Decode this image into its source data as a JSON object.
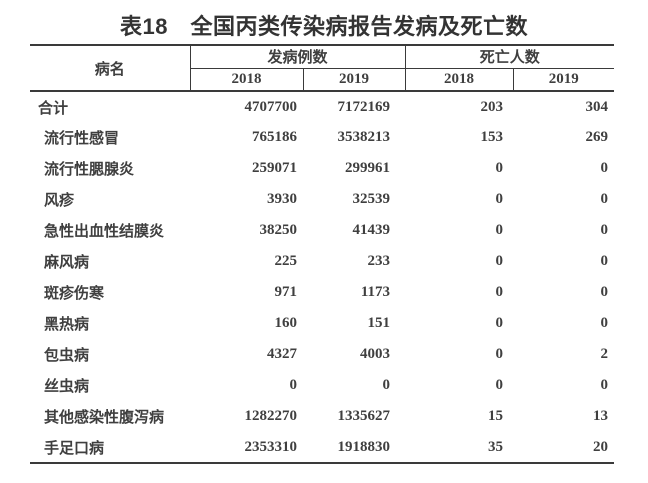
{
  "title": "表18　全国丙类传染病报告发病及死亡数",
  "table": {
    "header": {
      "disease": "病名",
      "cases_group": "发病例数",
      "deaths_group": "死亡人数",
      "cases_2018": "2018",
      "cases_2019": "2019",
      "deaths_2018": "2018",
      "deaths_2019": "2019"
    },
    "rows": [
      {
        "name": "合计",
        "is_total": true,
        "cases_2018": "4707700",
        "cases_2019": "7172169",
        "deaths_2018": "203",
        "deaths_2019": "304"
      },
      {
        "name": "流行性感冒",
        "is_total": false,
        "cases_2018": "765186",
        "cases_2019": "3538213",
        "deaths_2018": "153",
        "deaths_2019": "269"
      },
      {
        "name": "流行性腮腺炎",
        "is_total": false,
        "cases_2018": "259071",
        "cases_2019": "299961",
        "deaths_2018": "0",
        "deaths_2019": "0"
      },
      {
        "name": "风疹",
        "is_total": false,
        "cases_2018": "3930",
        "cases_2019": "32539",
        "deaths_2018": "0",
        "deaths_2019": "0"
      },
      {
        "name": "急性出血性结膜炎",
        "is_total": false,
        "cases_2018": "38250",
        "cases_2019": "41439",
        "deaths_2018": "0",
        "deaths_2019": "0"
      },
      {
        "name": "麻风病",
        "is_total": false,
        "cases_2018": "225",
        "cases_2019": "233",
        "deaths_2018": "0",
        "deaths_2019": "0"
      },
      {
        "name": "斑疹伤寒",
        "is_total": false,
        "cases_2018": "971",
        "cases_2019": "1173",
        "deaths_2018": "0",
        "deaths_2019": "0"
      },
      {
        "name": "黑热病",
        "is_total": false,
        "cases_2018": "160",
        "cases_2019": "151",
        "deaths_2018": "0",
        "deaths_2019": "0"
      },
      {
        "name": "包虫病",
        "is_total": false,
        "cases_2018": "4327",
        "cases_2019": "4003",
        "deaths_2018": "0",
        "deaths_2019": "2"
      },
      {
        "name": "丝虫病",
        "is_total": false,
        "cases_2018": "0",
        "cases_2019": "0",
        "deaths_2018": "0",
        "deaths_2019": "0"
      },
      {
        "name": "其他感染性腹泻病",
        "is_total": false,
        "cases_2018": "1282270",
        "cases_2019": "1335627",
        "deaths_2018": "15",
        "deaths_2019": "13"
      },
      {
        "name": "手足口病",
        "is_total": false,
        "cases_2018": "2353310",
        "cases_2019": "1918830",
        "deaths_2018": "35",
        "deaths_2019": "20"
      }
    ]
  },
  "colors": {
    "background": "#ffffff",
    "title": "#333333",
    "text": "#3f3f3f",
    "border": "#3a3a3a"
  }
}
